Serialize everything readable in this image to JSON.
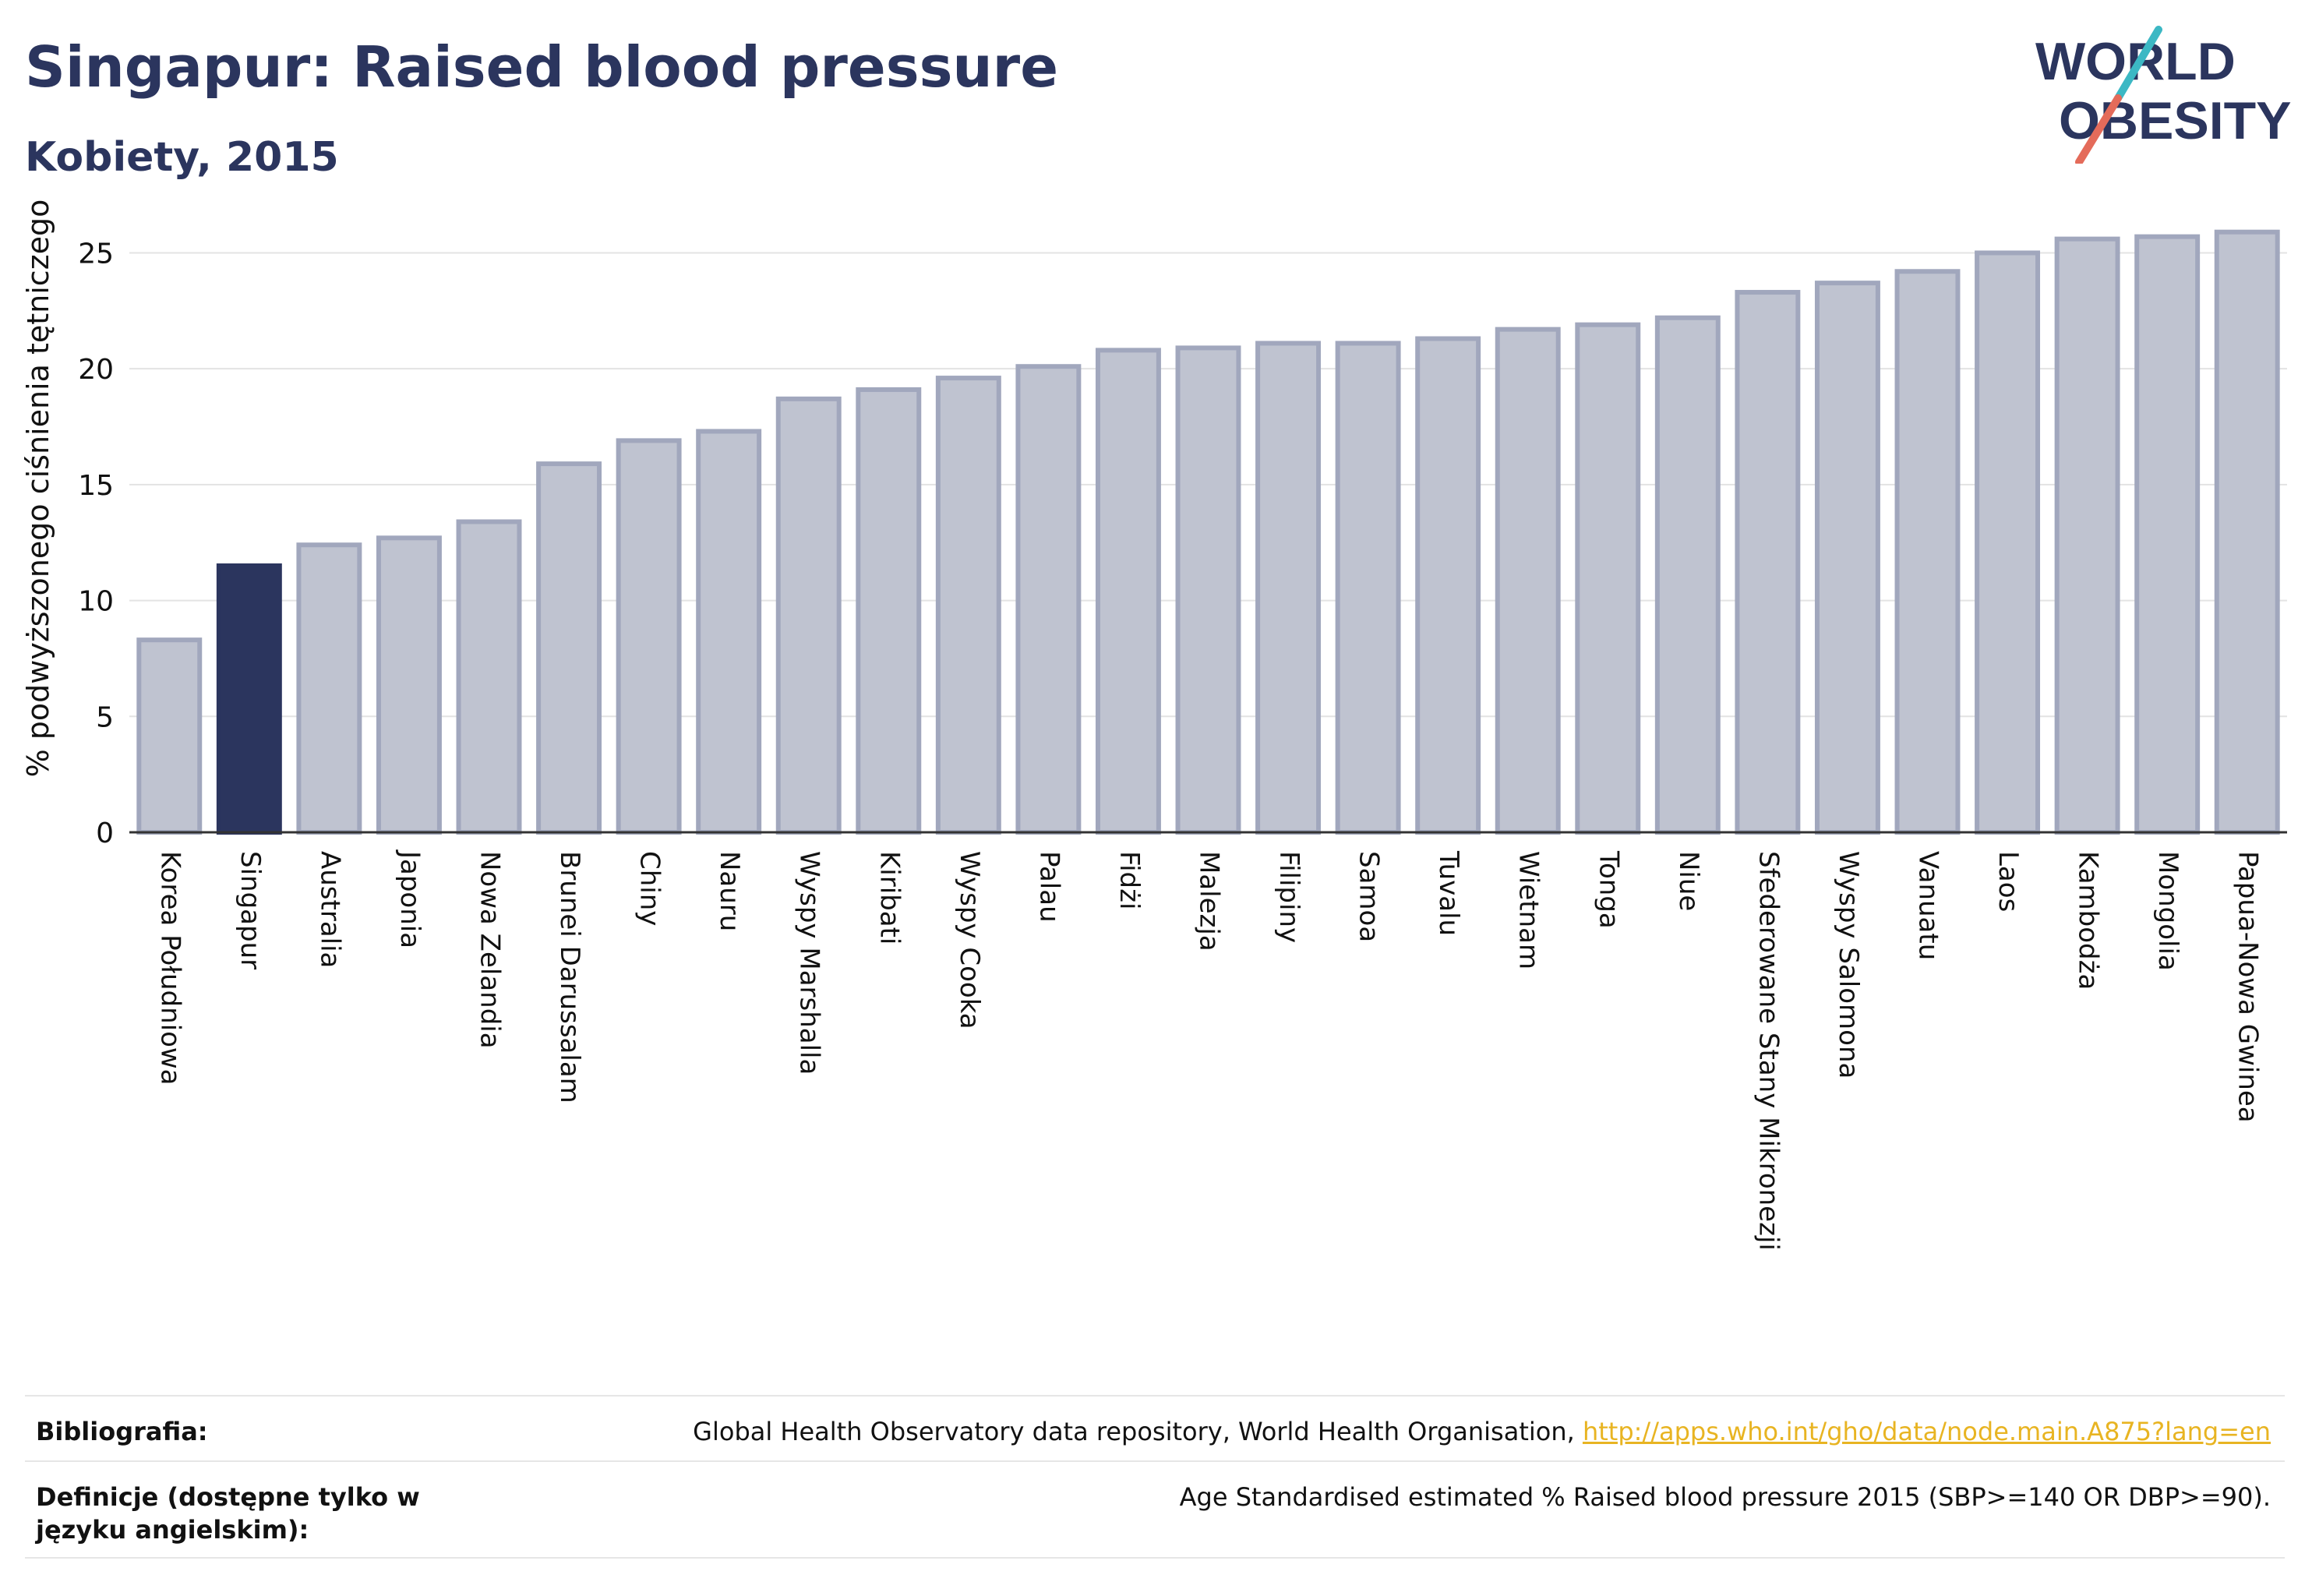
{
  "header": {
    "title": "Singapur: Raised blood pressure",
    "subtitle": "Kobiety, 2015"
  },
  "logo": {
    "line1": "WORLD",
    "line2": "OBESITY"
  },
  "colors": {
    "highlight": "#2b355e",
    "bar_fill": "#bfc3d0",
    "bar_stroke": "#a1a7bd",
    "gridline": "#e3e3e3",
    "axis_text": "#111111",
    "logo_teal": "#3cb8c4",
    "logo_coral": "#e46b5a",
    "link": "#e8b422"
  },
  "chart_data": {
    "type": "bar",
    "title": "Singapur: Raised blood pressure",
    "subtitle": "Kobiety, 2015",
    "xlabel": "",
    "ylabel": "% podwyższonego ciśnienia tętniczego",
    "ylim": [
      0,
      27
    ],
    "yticks": [
      0,
      5,
      10,
      15,
      20,
      25
    ],
    "grid": true,
    "highlight_category": "Singapur",
    "categories": [
      "Korea Południowa",
      "Singapur",
      "Australia",
      "Japonia",
      "Nowa Zelandia",
      "Brunei Darussalam",
      "Chiny",
      "Nauru",
      "Wyspy Marshalla",
      "Kiribati",
      "Wyspy Cooka",
      "Palau",
      "Fidżi",
      "Malezja",
      "Filipiny",
      "Samoa",
      "Tuvalu",
      "Wietnam",
      "Tonga",
      "Niue",
      "Sfederowane Stany Mikronezji",
      "Wyspy Salomona",
      "Vanuatu",
      "Laos",
      "Kambodża",
      "Mongolia",
      "Papua-Nowa Gwinea"
    ],
    "values": [
      8.3,
      11.5,
      12.4,
      12.7,
      13.4,
      15.9,
      16.9,
      17.3,
      18.7,
      19.1,
      19.6,
      20.1,
      20.8,
      20.9,
      21.1,
      21.1,
      21.3,
      21.7,
      21.9,
      22.2,
      23.3,
      23.7,
      24.2,
      25.0,
      25.6,
      25.7,
      25.9
    ]
  },
  "footer": {
    "bibliography_label": "Bibliografia:",
    "bibliography_text": "Global Health Observatory data repository, World Health Organisation, ",
    "bibliography_link": "http://apps.who.int/gho/data/node.main.A875?lang=en",
    "definitions_label": "Definicje (dostępne tylko w języku angielskim):",
    "definitions_text": "Age Standardised estimated % Raised blood pressure 2015 (SBP>=140 OR DBP>=90)."
  }
}
